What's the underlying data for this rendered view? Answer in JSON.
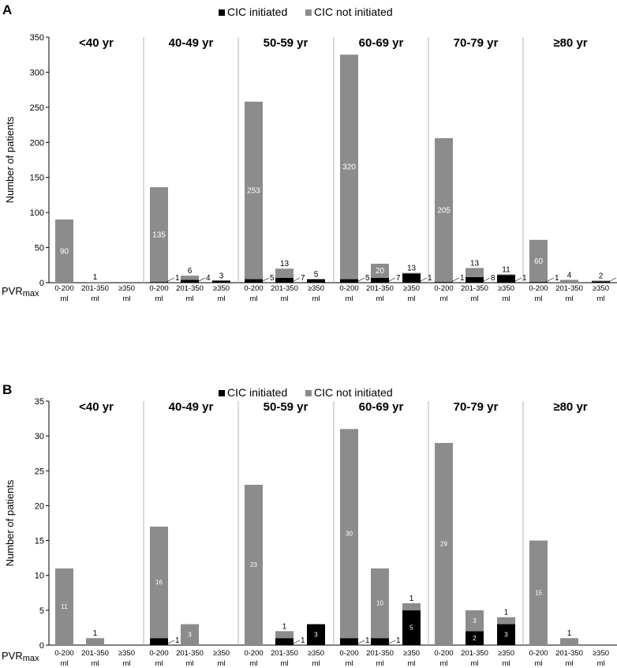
{
  "colors": {
    "initiated": "#000000",
    "not_initiated": "#8c8c8c",
    "separator": "#b4b4b4",
    "axis": "#000000"
  },
  "chart_data": [
    {
      "type": "bar",
      "stacked": true,
      "panel": "A",
      "legend": [
        "CIC initiated",
        "CIC not initiated"
      ],
      "ylabel": "Number of patients",
      "xlabel_prefix": "PVR",
      "xlabel_suffix": "max",
      "ylim": [
        0,
        350
      ],
      "yticks": [
        0,
        50,
        100,
        150,
        200,
        250,
        300,
        350
      ],
      "categories": [
        "0-200 ml",
        "201-350 ml",
        "≥350 ml"
      ],
      "groups": [
        {
          "label": "<40 yr",
          "bars": [
            {
              "cat": "0-200 ml",
              "initiated": 0,
              "not_initiated": 90,
              "label": "90"
            },
            {
              "cat": "201-350 ml",
              "initiated": 0,
              "not_initiated": 1,
              "label": "1"
            },
            {
              "cat": "≥350 ml",
              "initiated": 0,
              "not_initiated": 0,
              "label": ""
            }
          ]
        },
        {
          "label": "40-49 yr",
          "bars": [
            {
              "cat": "0-200 ml",
              "initiated": 1,
              "not_initiated": 135,
              "label": "135",
              "extra": "1"
            },
            {
              "cat": "201-350 ml",
              "initiated": 4,
              "not_initiated": 6,
              "label": "6",
              "extra": "4"
            },
            {
              "cat": "≥350 ml",
              "initiated": 3,
              "not_initiated": 0,
              "label": "3"
            }
          ]
        },
        {
          "label": "50-59 yr",
          "bars": [
            {
              "cat": "0-200 ml",
              "initiated": 5,
              "not_initiated": 253,
              "label": "253",
              "extra": "5"
            },
            {
              "cat": "201-350 ml",
              "initiated": 7,
              "not_initiated": 13,
              "label": "13",
              "extra": "7"
            },
            {
              "cat": "≥350 ml",
              "initiated": 5,
              "not_initiated": 0,
              "label": "5"
            }
          ]
        },
        {
          "label": "60-69 yr",
          "bars": [
            {
              "cat": "0-200 ml",
              "initiated": 5,
              "not_initiated": 320,
              "label": "320",
              "extra": "5"
            },
            {
              "cat": "201-350 ml",
              "initiated": 7,
              "not_initiated": 20,
              "label": "20",
              "extra": "7"
            },
            {
              "cat": "≥350 ml",
              "initiated": 13,
              "not_initiated": 1,
              "label": "13",
              "extra": "1"
            }
          ]
        },
        {
          "label": "70-79 yr",
          "bars": [
            {
              "cat": "0-200 ml",
              "initiated": 1,
              "not_initiated": 205,
              "label": "205",
              "extra": "1"
            },
            {
              "cat": "201-350 ml",
              "initiated": 8,
              "not_initiated": 13,
              "label": "13",
              "extra": "8"
            },
            {
              "cat": "≥350 ml",
              "initiated": 11,
              "not_initiated": 1,
              "label": "11",
              "extra": "1"
            }
          ]
        },
        {
          "label": "≥80 yr",
          "bars": [
            {
              "cat": "0-200 ml",
              "initiated": 1,
              "not_initiated": 60,
              "label": "60",
              "extra": "1"
            },
            {
              "cat": "201-350 ml",
              "initiated": 0,
              "not_initiated": 4,
              "label": "4"
            },
            {
              "cat": "≥350 ml",
              "initiated": 2,
              "not_initiated": 1,
              "label": "2",
              "extra": "1"
            }
          ]
        }
      ]
    },
    {
      "type": "bar",
      "stacked": true,
      "panel": "B",
      "legend": [
        "CIC initiated",
        "CIC not initiated"
      ],
      "ylabel": "Number of patients",
      "xlabel_prefix": "PVR",
      "xlabel_suffix": "max",
      "ylim": [
        0,
        35
      ],
      "yticks": [
        0,
        5,
        10,
        15,
        20,
        25,
        30,
        35
      ],
      "categories": [
        "0-200 ml",
        "201-350 ml",
        "≥350 ml"
      ],
      "groups": [
        {
          "label": "<40 yr",
          "bars": [
            {
              "cat": "0-200 ml",
              "initiated": 0,
              "not_initiated": 11,
              "label": "11"
            },
            {
              "cat": "201-350 ml",
              "initiated": 0,
              "not_initiated": 1,
              "label": "1"
            },
            {
              "cat": "≥350 ml",
              "initiated": 0,
              "not_initiated": 0,
              "label": ""
            }
          ]
        },
        {
          "label": "40-49 yr",
          "bars": [
            {
              "cat": "0-200 ml",
              "initiated": 1,
              "not_initiated": 16,
              "label": "16",
              "extra": "1"
            },
            {
              "cat": "201-350 ml",
              "initiated": 0,
              "not_initiated": 3,
              "label": "3"
            },
            {
              "cat": "≥350 ml",
              "initiated": 0,
              "not_initiated": 0,
              "label": ""
            }
          ]
        },
        {
          "label": "50-59 yr",
          "bars": [
            {
              "cat": "0-200 ml",
              "initiated": 0,
              "not_initiated": 23,
              "label": "23"
            },
            {
              "cat": "201-350 ml",
              "initiated": 1,
              "not_initiated": 1,
              "label": "1",
              "extra": "1"
            },
            {
              "cat": "≥350 ml",
              "initiated": 3,
              "not_initiated": 0,
              "label": "3"
            }
          ]
        },
        {
          "label": "60-69 yr",
          "bars": [
            {
              "cat": "0-200 ml",
              "initiated": 1,
              "not_initiated": 30,
              "label": "30",
              "extra": "1"
            },
            {
              "cat": "201-350 ml",
              "initiated": 1,
              "not_initiated": 10,
              "label": "10",
              "extra": "1"
            },
            {
              "cat": "≥350 ml",
              "initiated": 5,
              "not_initiated": 1,
              "label": "1",
              "extra": "5"
            }
          ]
        },
        {
          "label": "70-79 yr",
          "bars": [
            {
              "cat": "0-200 ml",
              "initiated": 0,
              "not_initiated": 29,
              "label": "29"
            },
            {
              "cat": "201-350 ml",
              "initiated": 2,
              "not_initiated": 3,
              "label": "3",
              "extra": "2"
            },
            {
              "cat": "≥350 ml",
              "initiated": 3,
              "not_initiated": 1,
              "label": "1",
              "extra": "3"
            }
          ]
        },
        {
          "label": "≥80 yr",
          "bars": [
            {
              "cat": "0-200 ml",
              "initiated": 0,
              "not_initiated": 15,
              "label": "15"
            },
            {
              "cat": "201-350 ml",
              "initiated": 0,
              "not_initiated": 1,
              "label": "1"
            },
            {
              "cat": "≥350 ml",
              "initiated": 0,
              "not_initiated": 0,
              "label": ""
            }
          ]
        }
      ]
    }
  ]
}
